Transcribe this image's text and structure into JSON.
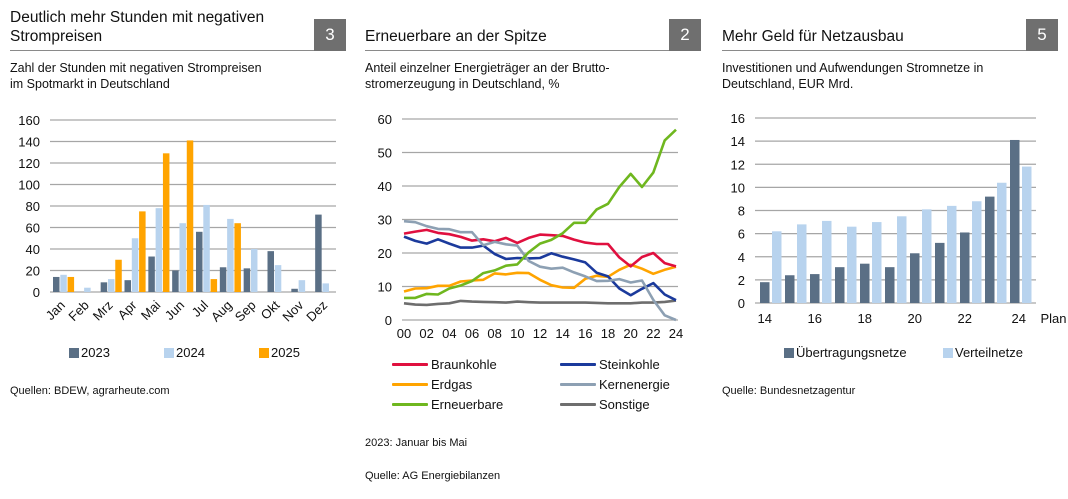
{
  "panels": [
    {
      "title": "Deutlich mehr Stunden mit negativen Strompreisen",
      "title_lines": [
        "Deutlich mehr Stunden mit negativen",
        "Strompreisen"
      ],
      "badge": "3",
      "subtitle_lines": [
        "Zahl der Stunden mit negativen Strompreisen",
        "im Spotmarkt in Deutschland"
      ],
      "source": "Quellen: BDEW, agrarheute.com"
    },
    {
      "title": "Erneuerbare an der Spitze",
      "badge": "2",
      "subtitle_lines": [
        "Anteil einzelner Energieträger an der Brutto-",
        "stromerzeugung in Deutschland, %"
      ],
      "note": "2023: Januar bis Mai",
      "source": "Quelle: AG Energiebilanzen"
    },
    {
      "title": "Mehr Geld für Netzausbau",
      "badge": "5",
      "subtitle_lines": [
        "Investitionen und Aufwendungen Stromnetze in",
        "Deutschland, EUR Mrd."
      ],
      "source": "Quelle: Bundesnetzagentur"
    }
  ],
  "chart_data": [
    {
      "type": "bar",
      "title": "Zahl der Stunden mit negativen Strompreisen im Spotmarkt in Deutschland",
      "categories": [
        "Jan",
        "Feb",
        "Mrz",
        "Apr",
        "Mai",
        "Jun",
        "Jul",
        "Aug",
        "Sep",
        "Okt",
        "Nov",
        "Dez"
      ],
      "series": [
        {
          "name": "2023",
          "color": "#5a6f85",
          "values": [
            14,
            0,
            9,
            11,
            33,
            20,
            56,
            23,
            22,
            38,
            3,
            72
          ]
        },
        {
          "name": "2024",
          "color": "#b8d3ee",
          "values": [
            16,
            4,
            12,
            50,
            78,
            64,
            81,
            68,
            40,
            25,
            11,
            8
          ]
        },
        {
          "name": "2025",
          "color": "#ffa400",
          "values": [
            14,
            null,
            30,
            75,
            129,
            141,
            12,
            64,
            null,
            null,
            null,
            null
          ]
        }
      ],
      "yticks": [
        0,
        20,
        40,
        60,
        80,
        100,
        120,
        140,
        160
      ],
      "ylim": [
        0,
        160
      ],
      "xlabel": "",
      "ylabel": "",
      "grid": true,
      "legend": "bottom"
    },
    {
      "type": "line",
      "title": "Anteil einzelner Energieträger an der Bruttostromerzeugung in Deutschland, %",
      "x": [
        "00",
        "01",
        "02",
        "03",
        "04",
        "05",
        "06",
        "07",
        "08",
        "09",
        "10",
        "11",
        "12",
        "13",
        "14",
        "15",
        "16",
        "17",
        "18",
        "19",
        "20",
        "21",
        "22",
        "23",
        "24"
      ],
      "xtick_labels": [
        "00",
        "02",
        "04",
        "06",
        "08",
        "10",
        "12",
        "14",
        "16",
        "18",
        "20",
        "22",
        "24"
      ],
      "series": [
        {
          "name": "Braunkohle",
          "color": "#e0103f",
          "values": [
            25.8,
            26.4,
            26.9,
            26.0,
            25.6,
            24.8,
            23.7,
            24.1,
            23.5,
            24.5,
            23.0,
            24.5,
            25.5,
            25.3,
            25.1,
            24.0,
            23.1,
            22.7,
            22.7,
            18.7,
            16.0,
            18.8,
            20.0,
            17.0,
            16.0
          ]
        },
        {
          "name": "Steinkohle",
          "color": "#1b3a9c",
          "values": [
            24.9,
            23.6,
            22.8,
            24.1,
            22.8,
            21.6,
            21.6,
            22.2,
            19.7,
            18.2,
            18.5,
            18.4,
            18.5,
            19.9,
            18.9,
            18.1,
            17.2,
            14.1,
            13.0,
            9.4,
            7.4,
            9.3,
            11.0,
            7.6,
            5.9
          ]
        },
        {
          "name": "Erdgas",
          "color": "#ffa400",
          "values": [
            8.5,
            9.4,
            9.5,
            10.2,
            10.2,
            11.5,
            11.8,
            12.0,
            13.9,
            13.6,
            14.1,
            14.0,
            12.0,
            10.4,
            9.7,
            9.6,
            12.3,
            13.2,
            12.9,
            15.0,
            16.5,
            15.3,
            13.8,
            15.0,
            15.9
          ]
        },
        {
          "name": "Kernenergie",
          "color": "#8da0b3",
          "values": [
            29.5,
            29.2,
            28.0,
            27.2,
            27.1,
            26.2,
            26.2,
            22.3,
            23.3,
            22.6,
            22.2,
            17.6,
            15.9,
            15.3,
            15.6,
            14.2,
            13.0,
            11.6,
            11.7,
            12.2,
            11.2,
            11.8,
            6.0,
            1.4,
            0
          ]
        },
        {
          "name": "Erneuerbare",
          "color": "#6fb71f",
          "values": [
            6.6,
            6.6,
            7.8,
            7.6,
            9.4,
            10.3,
            11.6,
            14.0,
            14.8,
            16.2,
            16.6,
            20.2,
            22.8,
            23.9,
            25.9,
            29.0,
            29.0,
            33.0,
            34.7,
            39.7,
            43.6,
            39.7,
            44.0,
            53.6,
            56.8
          ]
        },
        {
          "name": "Sonstige",
          "color": "#6e6e6e",
          "values": [
            5.0,
            4.6,
            4.5,
            4.8,
            5.0,
            5.7,
            5.5,
            5.4,
            5.3,
            5.2,
            5.5,
            5.3,
            5.2,
            5.2,
            5.2,
            5.2,
            5.2,
            5.1,
            5.0,
            5.0,
            5.0,
            5.2,
            5.2,
            5.4,
            5.8
          ]
        }
      ],
      "yticks": [
        0,
        10,
        20,
        30,
        40,
        50,
        60
      ],
      "ylim": [
        0,
        60
      ],
      "xlabel": "",
      "ylabel": "",
      "grid": true,
      "legend": "bottom"
    },
    {
      "type": "bar",
      "title": "Investitionen und Aufwendungen Stromnetze in Deutschland, EUR Mrd.",
      "categories": [
        "14",
        "15",
        "16",
        "17",
        "18",
        "19",
        "20",
        "21",
        "22",
        "23",
        "24",
        "Plan"
      ],
      "xtick_labels": [
        {
          "index": 0,
          "label": "14"
        },
        {
          "index": 2,
          "label": "16"
        },
        {
          "index": 4,
          "label": "18"
        },
        {
          "index": 6,
          "label": "20"
        },
        {
          "index": 8,
          "label": "22"
        },
        {
          "index": 10,
          "label": "24"
        },
        {
          "index": 11,
          "label": "Plan"
        }
      ],
      "series": [
        {
          "name": "Übertragungsnetze",
          "color": "#5a6f85",
          "values": [
            1.8,
            2.4,
            2.5,
            3.1,
            3.4,
            3.1,
            4.3,
            5.2,
            6.1,
            9.2,
            14.1,
            null
          ]
        },
        {
          "name": "Verteilnetze",
          "color": "#b8d3ee",
          "values": [
            6.2,
            6.8,
            7.1,
            6.6,
            7.0,
            7.5,
            8.1,
            8.4,
            8.8,
            10.4,
            11.8,
            null
          ]
        }
      ],
      "note": "Rightmost group labelled '24 Plan'; values 14.1 and 11.8 shown",
      "yticks": [
        0,
        2,
        4,
        6,
        8,
        10,
        12,
        14,
        16
      ],
      "ylim": [
        0,
        16
      ],
      "xlabel": "",
      "ylabel": "",
      "grid": true,
      "legend": "bottom"
    }
  ]
}
